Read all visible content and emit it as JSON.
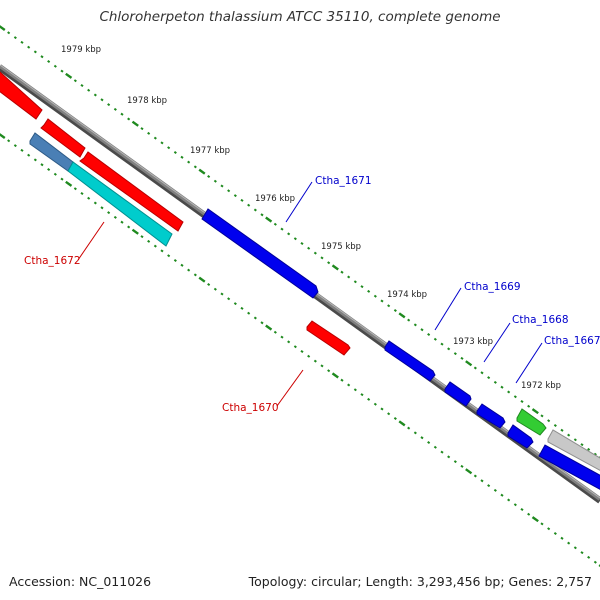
{
  "title": "Chloroherpeton thalassium ATCC 35110, complete genome",
  "footer": {
    "accession": "Accession: NC_011026",
    "summary": "Topology: circular; Length: 3,293,456 bp; Genes: 2,757"
  },
  "colors": {
    "backbone": "#808080",
    "backbone_shadow": "#4a4a4a",
    "ruler": "#1f8a1f",
    "label_red": "#cc0000",
    "label_blue": "#0000cc",
    "kbp_text": "#222222"
  },
  "ruler_labels": [
    "1979 kbp",
    "1978 kbp",
    "1977 kbp",
    "1976 kbp",
    "1975 kbp",
    "1974 kbp",
    "1973 kbp",
    "1972 kbp"
  ],
  "genes": [
    {
      "id": "gene-1",
      "color": "#ff0000",
      "shade": "#b80000"
    },
    {
      "id": "gene-2",
      "color": "#ff0000",
      "shade": "#b80000"
    },
    {
      "id": "gene-3",
      "color": "#ff0000",
      "shade": "#b80000"
    },
    {
      "id": "gene-4",
      "color": "#4a7fb5",
      "shade": "#2d5a86"
    },
    {
      "id": "gene-5",
      "color": "#00cccc",
      "shade": "#008f8f"
    },
    {
      "id": "ctha-1671",
      "color": "#0000ee",
      "shade": "#00009a"
    },
    {
      "id": "ctha-1670",
      "color": "#ff0000",
      "shade": "#b80000"
    },
    {
      "id": "ctha-1669",
      "color": "#0000ee",
      "shade": "#00009a"
    },
    {
      "id": "ctha-1668",
      "color": "#0000ee",
      "shade": "#00009a"
    },
    {
      "id": "gene-10",
      "color": "#0000ee",
      "shade": "#00009a"
    },
    {
      "id": "ctha-1667",
      "color": "#0000ee",
      "shade": "#00009a"
    },
    {
      "id": "gene-12",
      "color": "#33cc33",
      "shade": "#1f8a1f"
    },
    {
      "id": "gene-13",
      "color": "#c8c8c8",
      "shade": "#8f8f8f"
    },
    {
      "id": "gene-14",
      "color": "#0000ee",
      "shade": "#00009a"
    }
  ],
  "gene_labels": [
    {
      "text": "Ctha_1672",
      "color": "label_red"
    },
    {
      "text": "Ctha_1671",
      "color": "label_blue"
    },
    {
      "text": "Ctha_1670",
      "color": "label_red"
    },
    {
      "text": "Ctha_1669",
      "color": "label_blue"
    },
    {
      "text": "Ctha_1668",
      "color": "label_blue"
    },
    {
      "text": "Ctha_1667",
      "color": "label_blue"
    }
  ]
}
